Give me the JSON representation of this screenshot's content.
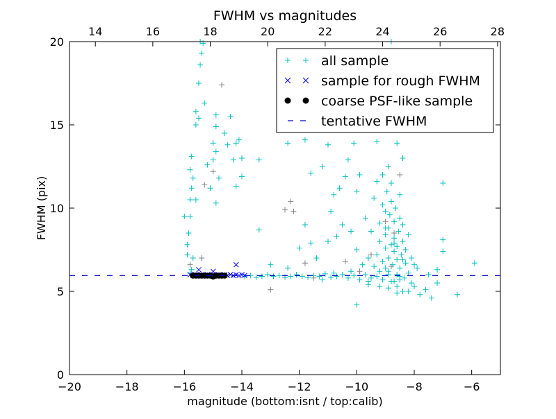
{
  "chart_data": {
    "type": "scatter",
    "title": "FWHM vs magnitudes",
    "xlabel": "magnitude (bottom:isnt / top:calib)",
    "ylabel": "FWHM (pix)",
    "xlim": [
      -20,
      -5
    ],
    "ylim": [
      0,
      20
    ],
    "top_xlim": [
      13.1,
      28.1
    ],
    "x_ticks": [
      -20,
      -18,
      -16,
      -14,
      -12,
      -10,
      -8,
      -6
    ],
    "x_tick_labels": [
      "−20",
      "−18",
      "−16",
      "−14",
      "−12",
      "−10",
      "−8",
      "−6"
    ],
    "top_ticks": [
      14,
      16,
      18,
      20,
      22,
      24,
      26,
      28
    ],
    "top_tick_labels": [
      "14",
      "16",
      "18",
      "20",
      "22",
      "24",
      "26",
      "28"
    ],
    "y_ticks": [
      0,
      5,
      10,
      15,
      20
    ],
    "y_tick_labels": [
      "0",
      "5",
      "10",
      "15",
      "20"
    ],
    "grid": false,
    "legend_position": "top-right",
    "tentative_fwhm": 5.95,
    "colors": {
      "all": "#00bfbf",
      "other": "#808080",
      "rough": "#0000ff",
      "psf": "#000000",
      "line": "#0000cc"
    },
    "legend": [
      "all sample",
      "sample for rough FWHM",
      "coarse PSF-like sample",
      "tentative FWHM"
    ],
    "series": [
      {
        "name": "",
        "marker": "plus",
        "color_key": "other",
        "points": [
          [
            -15.0,
            12.2
          ],
          [
            -14.7,
            17.4
          ],
          [
            -15.3,
            11.4
          ],
          [
            -12.5,
            9.9
          ],
          [
            -12.3,
            10.4
          ],
          [
            -13.0,
            5.1
          ],
          [
            -11.8,
            6.7
          ],
          [
            -12.2,
            9.8
          ],
          [
            -11.5,
            5.8
          ],
          [
            -9.9,
            6.2
          ],
          [
            -9.5,
            7.2
          ],
          [
            -8.7,
            8.5
          ],
          [
            -9.0,
            9.2
          ],
          [
            -8.8,
            6.5
          ],
          [
            -15.4,
            7.0
          ],
          [
            -10.4,
            6.8
          ],
          [
            -8.5,
            12.0
          ],
          [
            -15.8,
            6.6
          ]
        ]
      },
      {
        "name": "all sample",
        "marker": "plus",
        "color_key": "all",
        "points": [
          [
            -15.9,
            7.8
          ],
          [
            -15.85,
            8.5
          ],
          [
            -15.8,
            9.5
          ],
          [
            -15.8,
            10.5
          ],
          [
            -15.75,
            11.2
          ],
          [
            -15.8,
            12.3
          ],
          [
            -15.75,
            13.1
          ],
          [
            -15.7,
            7.0
          ],
          [
            -15.75,
            6.3
          ],
          [
            -15.6,
            15.0
          ],
          [
            -15.6,
            15.8
          ],
          [
            -15.5,
            17.5
          ],
          [
            -15.45,
            18.6
          ],
          [
            -15.4,
            19.3
          ],
          [
            -15.35,
            19.9
          ],
          [
            -15.3,
            16.3
          ],
          [
            -15.45,
            20.0
          ],
          [
            -15.5,
            15.4
          ],
          [
            -15.6,
            10.5
          ],
          [
            -15.7,
            11.8
          ],
          [
            -16.0,
            9.5
          ],
          [
            -15.9,
            7.2
          ],
          [
            -15.8,
            6.1
          ],
          [
            -14.9,
            15.6
          ],
          [
            -14.9,
            14.9
          ],
          [
            -15.0,
            13.9
          ],
          [
            -14.9,
            13.4
          ],
          [
            -15.0,
            12.9
          ],
          [
            -15.2,
            12.6
          ],
          [
            -14.8,
            11.8
          ],
          [
            -14.9,
            10.3
          ],
          [
            -14.6,
            14.5
          ],
          [
            -14.4,
            15.5
          ],
          [
            -14.5,
            13.8
          ],
          [
            -14.3,
            12.9
          ],
          [
            -14.2,
            13.9
          ],
          [
            -14.1,
            14.1
          ],
          [
            -14.0,
            13.0
          ],
          [
            -13.4,
            12.9
          ],
          [
            -14.0,
            11.9
          ],
          [
            -14.2,
            11.3
          ],
          [
            -15.1,
            11.2
          ],
          [
            -13.4,
            8.7
          ],
          [
            -13.9,
            5.9
          ],
          [
            -13.7,
            5.95
          ],
          [
            -13.5,
            5.85
          ],
          [
            -13.3,
            5.9
          ],
          [
            -13.1,
            6.0
          ],
          [
            -12.9,
            5.9
          ],
          [
            -12.7,
            5.95
          ],
          [
            -12.5,
            5.85
          ],
          [
            -12.3,
            5.9
          ],
          [
            -12.1,
            6.0
          ],
          [
            -11.9,
            5.9
          ],
          [
            -11.7,
            5.85
          ],
          [
            -11.5,
            5.95
          ],
          [
            -11.3,
            5.9
          ],
          [
            -11.1,
            6.05
          ],
          [
            -10.9,
            5.85
          ],
          [
            -10.7,
            5.9
          ],
          [
            -10.5,
            6.0
          ],
          [
            -10.3,
            5.8
          ],
          [
            -10.1,
            5.95
          ],
          [
            -9.9,
            5.7
          ],
          [
            -9.7,
            6.0
          ],
          [
            -9.5,
            5.8
          ],
          [
            -9.3,
            5.9
          ],
          [
            -9.1,
            5.7
          ],
          [
            -8.9,
            6.0
          ],
          [
            -8.7,
            5.6
          ],
          [
            -8.5,
            5.9
          ],
          [
            -11.2,
            5.7
          ],
          [
            -10.8,
            6.1
          ],
          [
            -10.2,
            6.2
          ],
          [
            -9.6,
            5.6
          ],
          [
            -13.0,
            6.6
          ],
          [
            -12.4,
            6.4
          ],
          [
            -12.0,
            7.6
          ],
          [
            -11.8,
            9.0
          ],
          [
            -11.6,
            7.9
          ],
          [
            -11.4,
            7.0
          ],
          [
            -11.6,
            12.1
          ],
          [
            -11.2,
            12.5
          ],
          [
            -11.0,
            13.8
          ],
          [
            -11.3,
            14.9
          ],
          [
            -11.8,
            14.1
          ],
          [
            -12.4,
            13.9
          ],
          [
            -10.8,
            10.8
          ],
          [
            -10.6,
            11.2
          ],
          [
            -10.3,
            12.9
          ],
          [
            -10.4,
            11.9
          ],
          [
            -10.0,
            11.0
          ],
          [
            -10.1,
            13.9
          ],
          [
            -9.9,
            12.0
          ],
          [
            -10.9,
            9.8
          ],
          [
            -10.5,
            9.0
          ],
          [
            -10.7,
            8.3
          ],
          [
            -10.2,
            8.6
          ],
          [
            -10.0,
            7.5
          ],
          [
            -11.0,
            8.0
          ],
          [
            -10.0,
            4.2
          ],
          [
            -9.8,
            14.9
          ],
          [
            -9.5,
            15.8
          ],
          [
            -9.2,
            16.5
          ],
          [
            -9.0,
            17.5
          ],
          [
            -8.8,
            18.0
          ],
          [
            -8.7,
            19.0
          ],
          [
            -8.8,
            20.0
          ],
          [
            -9.3,
            14.0
          ],
          [
            -8.6,
            13.9
          ],
          [
            -8.4,
            13.0
          ],
          [
            -8.9,
            12.5
          ],
          [
            -9.4,
            6.5
          ],
          [
            -9.3,
            7.2
          ],
          [
            -9.2,
            8.0
          ],
          [
            -9.2,
            9.1
          ],
          [
            -9.1,
            10.2
          ],
          [
            -9.1,
            6.8
          ],
          [
            -9.0,
            7.6
          ],
          [
            -9.0,
            8.4
          ],
          [
            -9.0,
            9.8
          ],
          [
            -8.95,
            11.0
          ],
          [
            -8.9,
            6.2
          ],
          [
            -8.9,
            7.0
          ],
          [
            -8.9,
            8.8
          ],
          [
            -8.85,
            9.6
          ],
          [
            -8.8,
            10.4
          ],
          [
            -8.8,
            7.8
          ],
          [
            -8.75,
            6.6
          ],
          [
            -8.7,
            7.4
          ],
          [
            -8.7,
            8.2
          ],
          [
            -8.7,
            9.2
          ],
          [
            -8.65,
            10.0
          ],
          [
            -8.6,
            6.0
          ],
          [
            -8.6,
            6.9
          ],
          [
            -8.6,
            7.7
          ],
          [
            -8.55,
            8.6
          ],
          [
            -8.5,
            9.4
          ],
          [
            -8.5,
            10.8
          ],
          [
            -8.5,
            6.4
          ],
          [
            -8.45,
            7.2
          ],
          [
            -8.4,
            8.0
          ],
          [
            -8.4,
            9.0
          ],
          [
            -8.35,
            5.8
          ],
          [
            -8.3,
            6.7
          ],
          [
            -8.3,
            7.5
          ],
          [
            -8.2,
            8.4
          ],
          [
            -8.2,
            6.1
          ],
          [
            -8.1,
            7.0
          ],
          [
            -8.1,
            5.5
          ],
          [
            -8.0,
            6.6
          ],
          [
            -9.6,
            7.0
          ],
          [
            -9.5,
            8.6
          ],
          [
            -9.7,
            9.4
          ],
          [
            -9.4,
            10.6
          ],
          [
            -9.3,
            11.6
          ],
          [
            -9.1,
            12.0
          ],
          [
            -8.8,
            11.5
          ],
          [
            -9.8,
            6.6
          ],
          [
            -9.6,
            5.4
          ],
          [
            -9.2,
            5.3
          ],
          [
            -8.9,
            5.2
          ],
          [
            -8.6,
            5.3
          ],
          [
            -8.4,
            5.0
          ],
          [
            -8.6,
            4.9
          ],
          [
            -9.0,
            6.4
          ],
          [
            -8.8,
            5.6
          ],
          [
            -8.5,
            5.7
          ],
          [
            -8.7,
            7.9
          ],
          [
            -9.0,
            8.8
          ],
          [
            -8.4,
            6.9
          ],
          [
            -9.2,
            6.2
          ],
          [
            -7.9,
            6.4
          ],
          [
            -7.5,
            6.0
          ],
          [
            -7.2,
            5.5
          ],
          [
            -7.8,
            4.8
          ],
          [
            -7.0,
            8.1
          ],
          [
            -7.0,
            7.4
          ],
          [
            -7.2,
            6.3
          ],
          [
            -6.5,
            4.8
          ],
          [
            -5.9,
            6.7
          ],
          [
            -7.0,
            11.5
          ],
          [
            -7.6,
            5.1
          ],
          [
            -7.4,
            4.6
          ],
          [
            -8.0,
            5.3
          ],
          [
            -8.2,
            5.0
          ]
        ]
      },
      {
        "name": "sample for rough FWHM",
        "marker": "x",
        "color_key": "rough",
        "points": [
          [
            -15.8,
            6.0
          ],
          [
            -15.7,
            5.95
          ],
          [
            -15.6,
            6.0
          ],
          [
            -15.5,
            5.95
          ],
          [
            -15.4,
            6.0
          ],
          [
            -15.3,
            5.95
          ],
          [
            -15.2,
            6.0
          ],
          [
            -15.1,
            5.95
          ],
          [
            -15.0,
            6.0
          ],
          [
            -14.9,
            5.95
          ],
          [
            -14.8,
            6.0
          ],
          [
            -14.7,
            5.95
          ],
          [
            -14.6,
            6.0
          ],
          [
            -14.5,
            5.95
          ],
          [
            -14.4,
            6.0
          ],
          [
            -14.3,
            5.95
          ],
          [
            -14.2,
            6.0
          ],
          [
            -14.1,
            5.95
          ],
          [
            -14.0,
            6.0
          ],
          [
            -13.9,
            5.95
          ],
          [
            -15.5,
            6.3
          ],
          [
            -15.0,
            6.2
          ],
          [
            -14.2,
            6.6
          ]
        ]
      },
      {
        "name": "coarse PSF-like sample",
        "marker": "dot",
        "color_key": "psf",
        "points": [
          [
            -15.7,
            5.95
          ],
          [
            -15.6,
            5.95
          ],
          [
            -15.5,
            5.95
          ],
          [
            -15.4,
            5.95
          ],
          [
            -15.3,
            5.95
          ],
          [
            -15.2,
            5.95
          ],
          [
            -15.1,
            5.95
          ],
          [
            -15.0,
            5.9
          ],
          [
            -14.9,
            5.95
          ],
          [
            -14.8,
            5.95
          ],
          [
            -14.7,
            5.95
          ],
          [
            -14.6,
            5.95
          ]
        ]
      }
    ]
  }
}
